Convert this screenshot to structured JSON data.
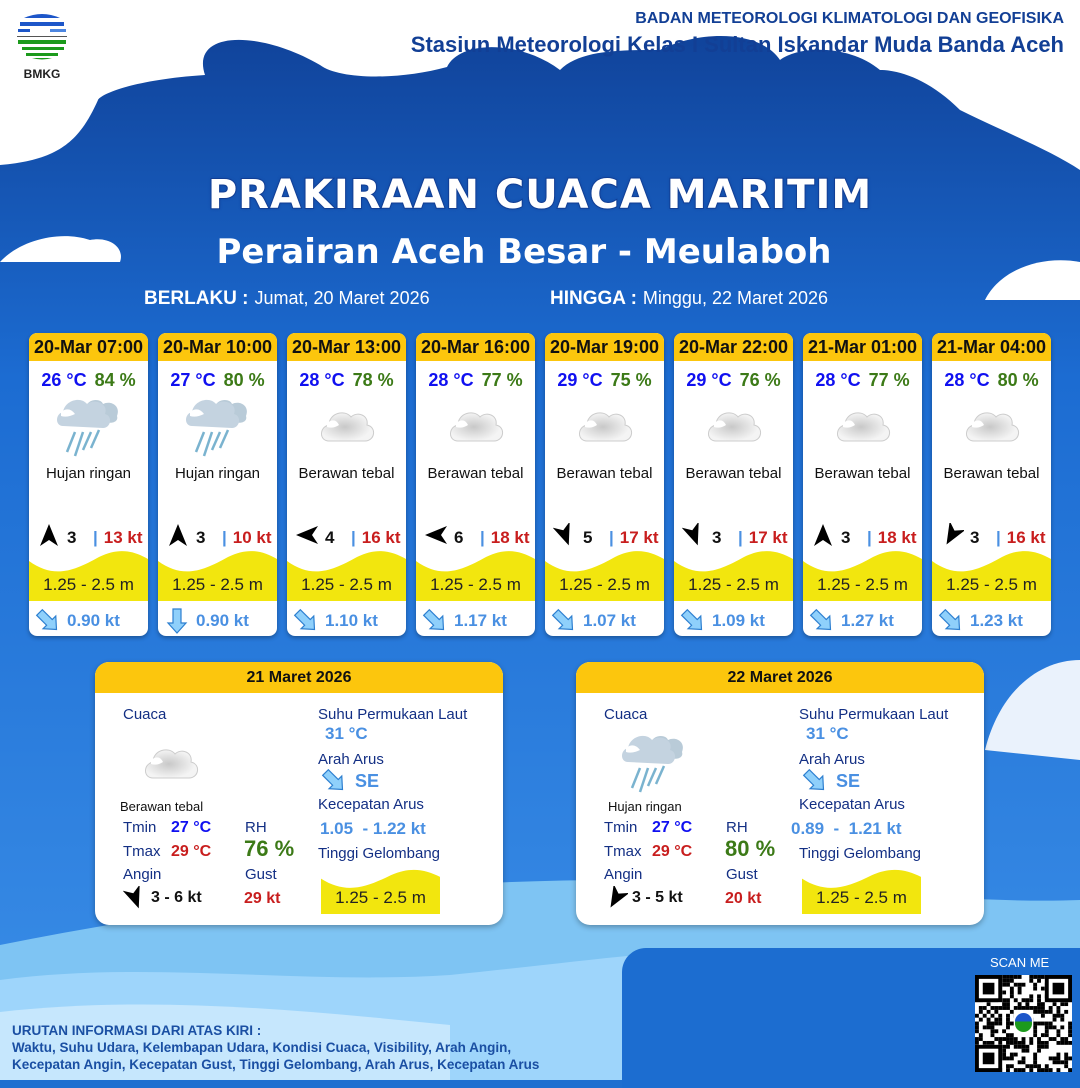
{
  "header": {
    "org": "BADAN METEOROLOGI KLIMATOLOGI DAN GEOFISIKA",
    "station": "Stasiun Meteorologi Kelas I Sultan Iskandar Muda Banda Aceh",
    "logo_text": "BMKG"
  },
  "title": "PRAKIRAAN CUACA MARITIM",
  "subtitle": "Perairan Aceh Besar - Meulaboh",
  "validity": {
    "from_label": "BERLAKU :",
    "from": "Jumat, 20 Maret 2026",
    "to_label": "HINGGA :",
    "to": "Minggu, 22 Maret 2026"
  },
  "colors": {
    "accent": "#fcc60d",
    "temp": "#1010f0",
    "rh": "#3c7a17",
    "gust": "#c81e1e",
    "current": "#4a90e2",
    "wave": "#f2e60e"
  },
  "forecasts": [
    {
      "time": "20-Mar 07:00",
      "temp": "26 °C",
      "rh": "84 %",
      "icon": "light-rain-icon",
      "cond": "Hujan ringan",
      "wind_dir_deg": 180,
      "wind": "3",
      "gust": "13 kt",
      "wave": "1.25 - 2.5 m",
      "current_dir": "SE",
      "current": "0.90 kt"
    },
    {
      "time": "20-Mar 10:00",
      "temp": "27 °C",
      "rh": "80 %",
      "icon": "light-rain-icon",
      "cond": "Hujan ringan",
      "wind_dir_deg": 180,
      "wind": "3",
      "gust": "10 kt",
      "wave": "1.25 - 2.5 m",
      "current_dir": "S",
      "current": "0.90 kt"
    },
    {
      "time": "20-Mar 13:00",
      "temp": "28 °C",
      "rh": "78 %",
      "icon": "cloudy-icon",
      "cond": "Berawan tebal",
      "wind_dir_deg": 90,
      "wind": "4",
      "gust": "16 kt",
      "wave": "1.25 - 2.5 m",
      "current_dir": "SE",
      "current": "1.10 kt"
    },
    {
      "time": "20-Mar 16:00",
      "temp": "28 °C",
      "rh": "77 %",
      "icon": "cloudy-icon",
      "cond": "Berawan tebal",
      "wind_dir_deg": 90,
      "wind": "6",
      "gust": "18 kt",
      "wave": "1.25 - 2.5 m",
      "current_dir": "SE",
      "current": "1.17 kt"
    },
    {
      "time": "20-Mar 19:00",
      "temp": "29 °C",
      "rh": "75 %",
      "icon": "cloudy-icon",
      "cond": "Berawan tebal",
      "wind_dir_deg": 340,
      "wind": "5",
      "gust": "17 kt",
      "wave": "1.25 - 2.5 m",
      "current_dir": "SE",
      "current": "1.07 kt"
    },
    {
      "time": "20-Mar 22:00",
      "temp": "29 °C",
      "rh": "76 %",
      "icon": "cloudy-icon",
      "cond": "Berawan tebal",
      "wind_dir_deg": 340,
      "wind": "3",
      "gust": "17 kt",
      "wave": "1.25 - 2.5 m",
      "current_dir": "SE",
      "current": "1.09 kt"
    },
    {
      "time": "21-Mar 01:00",
      "temp": "28 °C",
      "rh": "77 %",
      "icon": "cloudy-icon",
      "cond": "Berawan tebal",
      "wind_dir_deg": 180,
      "wind": "3",
      "gust": "18 kt",
      "wave": "1.25 - 2.5 m",
      "current_dir": "SE",
      "current": "1.27 kt"
    },
    {
      "time": "21-Mar 04:00",
      "temp": "28 °C",
      "rh": "80 %",
      "icon": "cloudy-icon",
      "cond": "Berawan tebal",
      "wind_dir_deg": 30,
      "wind": "3",
      "gust": "16 kt",
      "wave": "1.25 - 2.5 m",
      "current_dir": "SE",
      "current": "1.23 kt"
    }
  ],
  "daily": [
    {
      "date": "21 Maret 2026",
      "weather_label": "Cuaca",
      "icon": "cloudy-icon",
      "cond": "Berawan tebal",
      "tmin_label": "Tmin",
      "tmin": "27 °C",
      "tmax_label": "Tmax",
      "tmax": "29 °C",
      "rh_label": "RH",
      "rh": "76 %",
      "wind_label": "Angin",
      "wind_dir_deg": 340,
      "wind": "3  - 6 kt",
      "gust_label": "Gust",
      "gust": "29 kt",
      "sst_label": "Suhu Permukaan Laut",
      "sst": "31 °C",
      "curdir_label": "Arah Arus",
      "curdir": "SE",
      "curspd_label": "Kecepatan Arus",
      "curspd": "1.05  - 1.22 kt",
      "wave_label": "Tinggi Gelombang",
      "wave": "1.25 - 2.5 m"
    },
    {
      "date": "22 Maret 2026",
      "weather_label": "Cuaca",
      "icon": "light-rain-icon",
      "cond": "Hujan ringan",
      "tmin_label": "Tmin",
      "tmin": "27 °C",
      "tmax_label": "Tmax",
      "tmax": "29 °C",
      "rh_label": "RH",
      "rh": "80 %",
      "wind_label": "Angin",
      "wind_dir_deg": 30,
      "wind": "3  - 5 kt",
      "gust_label": "Gust",
      "gust": "20 kt",
      "sst_label": "Suhu Permukaan Laut",
      "sst": "31 °C",
      "curdir_label": "Arah Arus",
      "curdir": "SE",
      "curspd_label": "Kecepatan Arus",
      "curspd": "0.89  -  1.21 kt",
      "wave_label": "Tinggi Gelombang",
      "wave": "1.25 - 2.5 m"
    }
  ],
  "footer": {
    "heading": "URUTAN INFORMASI DARI ATAS KIRI :",
    "line1": "Waktu, Suhu Udara, Kelembapan Udara, Kondisi Cuaca, Visibility, Arah Angin,",
    "line2": "Kecepatan Angin, Kecepatan Gust, Tinggi Gelombang, Arah Arus, Kecepatan Arus",
    "scan": "SCAN ME"
  }
}
